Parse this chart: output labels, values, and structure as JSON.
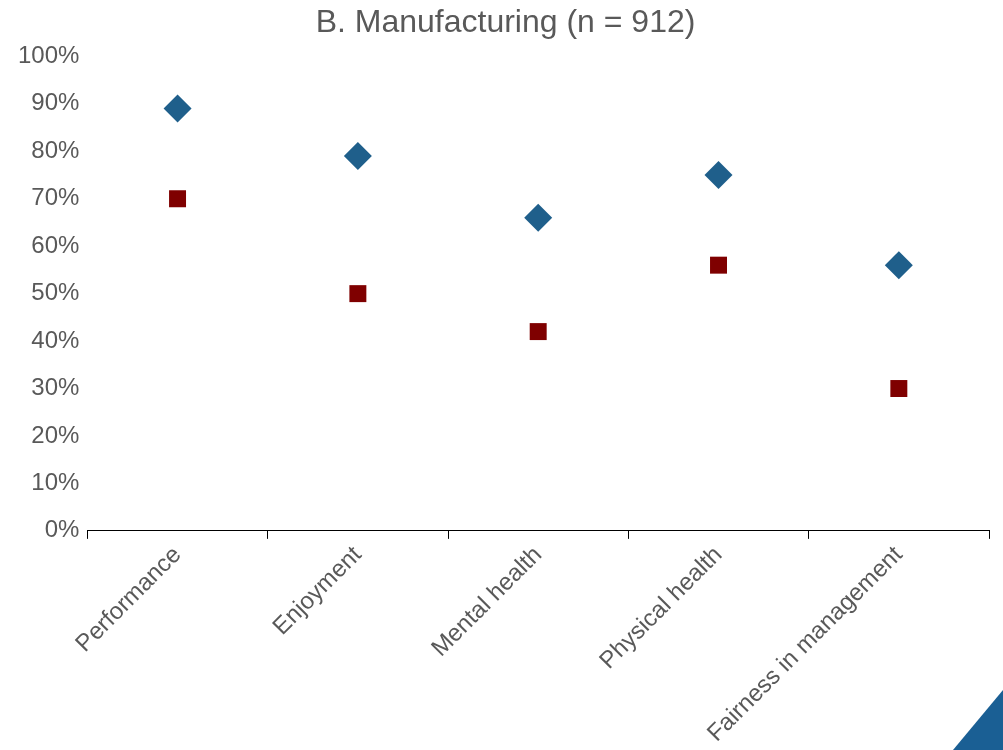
{
  "chart_data": {
    "type": "scatter",
    "title": "B. Manufacturing (n = 912)",
    "categories": [
      "Performance",
      "Enjoyment",
      "Mental health",
      "Physical health",
      "Fairness in management"
    ],
    "series": [
      {
        "color": "#1f5f8b",
        "marker": "diamond",
        "values": [
          89,
          79,
          66,
          75,
          56
        ]
      },
      {
        "color": "#7f0000",
        "marker": "square",
        "values": [
          70,
          50,
          42,
          56,
          30
        ]
      }
    ],
    "ylim": [
      0,
      100
    ],
    "yticks": [
      {
        "value": 0,
        "label": "0%"
      },
      {
        "value": 10,
        "label": "10%"
      },
      {
        "value": 20,
        "label": "20%"
      },
      {
        "value": 30,
        "label": "30%"
      },
      {
        "value": 40,
        "label": "40%"
      },
      {
        "value": 50,
        "label": "50%"
      },
      {
        "value": 60,
        "label": "60%"
      },
      {
        "value": 70,
        "label": "70%"
      },
      {
        "value": 80,
        "label": "80%"
      },
      {
        "value": 90,
        "label": "90%"
      },
      {
        "value": 100,
        "label": "100%"
      }
    ],
    "grid": false,
    "legend": false
  }
}
